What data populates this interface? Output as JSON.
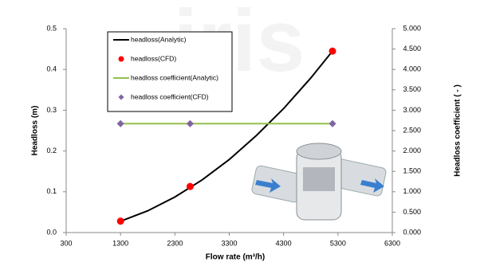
{
  "chart_data": {
    "type": "line",
    "x_label": "Flow rate (m³/h)",
    "y_label": "Headloss (m)",
    "y2_label": "Headloss coefficient ( - )",
    "xlim": [
      300,
      6300
    ],
    "xticks": [
      300,
      1300,
      2300,
      3300,
      4300,
      5300,
      6300
    ],
    "ylim": [
      0,
      0.5
    ],
    "yticks": [
      {
        "value": 0,
        "label": "0.0"
      },
      0.1,
      0.2,
      0.3,
      0.4,
      0.5
    ],
    "y2lim": [
      0,
      5
    ],
    "y2ticks": [
      {
        "value": 0,
        "label": "0.000"
      },
      {
        "value": 0.5,
        "label": "0.500"
      },
      {
        "value": 1,
        "label": "1.000"
      },
      {
        "value": 1.5,
        "label": "1.500"
      },
      {
        "value": 2,
        "label": "2.000"
      },
      {
        "value": 2.5,
        "label": "2.500"
      },
      {
        "value": 3,
        "label": "3.000"
      },
      {
        "value": 3.5,
        "label": "3.500"
      },
      {
        "value": 4,
        "label": "4.000"
      },
      {
        "value": 4.5,
        "label": "4.500"
      },
      {
        "value": 5,
        "label": "5.000"
      }
    ],
    "series": [
      {
        "name": "headloss(Analytic)",
        "color": "#000000",
        "style": "line",
        "x": [
          1300,
          1800,
          2300,
          2800,
          3300,
          3800,
          4300,
          4800,
          5200
        ],
        "values": [
          0.0278,
          0.0533,
          0.0871,
          0.129,
          0.179,
          0.238,
          0.304,
          0.379,
          0.445
        ]
      },
      {
        "name": "headloss(CFD)",
        "color": "#ff0000",
        "style": "circle",
        "x": [
          1300,
          2580,
          5200
        ],
        "values": [
          0.028,
          0.113,
          0.445
        ]
      },
      {
        "name": "headloss coefficient(Analytic)",
        "color": "#92c050",
        "style": "line",
        "axis": "y2",
        "x": [
          1300,
          5200
        ],
        "values": [
          2.67,
          2.67
        ]
      },
      {
        "name": "headloss coefficient(CFD)",
        "color": "#8064a2",
        "style": "diamond",
        "axis": "y2",
        "x": [
          1300,
          2580,
          5200
        ],
        "values": [
          2.67,
          2.67,
          2.67
        ]
      }
    ]
  }
}
